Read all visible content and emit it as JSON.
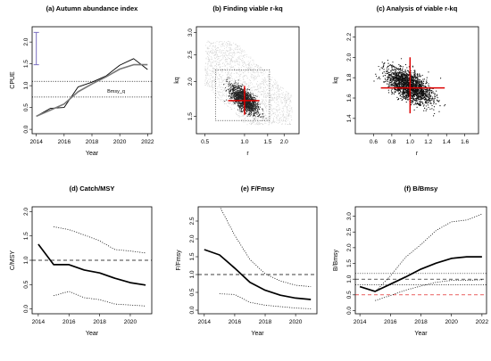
{
  "figure": {
    "panels": [
      {
        "key": "a",
        "title": "(a) Autumn abundance index",
        "xlabel": "Year",
        "ylabel": "CPUE",
        "xticks": [
          "2014",
          "2016",
          "2018",
          "2020",
          "2022"
        ],
        "yticks": [
          "0.0",
          "0.5",
          "1.0",
          "1.5",
          "2.0"
        ]
      },
      {
        "key": "b",
        "title": "(b) Finding viable r-kq",
        "xlabel": "r",
        "ylabel": "kq",
        "xticks": [
          "0.5",
          "1.0",
          "1.5",
          "2.0"
        ],
        "yticks": [
          "1.5",
          "2.0",
          "2.5",
          "3.0"
        ]
      },
      {
        "key": "c",
        "title": "(c) Analysis of viable r-kq",
        "xlabel": "r",
        "ylabel": "kq",
        "xticks": [
          "0.6",
          "0.8",
          "1.0",
          "1.2",
          "1.4",
          "1.6"
        ],
        "yticks": [
          "1.4",
          "1.6",
          "1.8",
          "2.0",
          "2.2"
        ]
      },
      {
        "key": "d",
        "title": "(d) Catch/MSY",
        "xlabel": "Year",
        "ylabel": "C/MSY",
        "xticks": [
          "2014",
          "2016",
          "2018",
          "2020"
        ],
        "yticks": [
          "0.0",
          "0.5",
          "1.0",
          "1.5",
          "2.0"
        ]
      },
      {
        "key": "e",
        "title": "(e) F/Fmsy",
        "xlabel": "Year",
        "ylabel": "F/Fmsy",
        "xticks": [
          "2014",
          "2016",
          "2018",
          "2020"
        ],
        "yticks": [
          "0.0",
          "0.5",
          "1.0",
          "1.5",
          "2.0",
          "2.5"
        ]
      },
      {
        "key": "f",
        "title": "(f) B/Bmsy",
        "xlabel": "Year",
        "ylabel": "B/Bmsy",
        "xticks": [
          "2014",
          "2016",
          "2018",
          "2020",
          "2022"
        ],
        "yticks": [
          "0.0",
          "0.5",
          "1.0",
          "1.5",
          "2.0",
          "2.5",
          "3.0"
        ]
      }
    ],
    "annotations": {
      "bmsy_label": "Bmsy_q"
    }
  },
  "chart_data": [
    {
      "type": "line",
      "panel": "a",
      "xlim": [
        2013.7,
        2022.3
      ],
      "ylim": [
        -0.1,
        2.35
      ],
      "series": [
        {
          "x": [
            2014,
            2015,
            2016,
            2017,
            2018,
            2019,
            2020,
            2021,
            2022
          ],
          "y": [
            0.3,
            0.48,
            0.5,
            0.97,
            1.08,
            1.22,
            1.47,
            1.62,
            1.37
          ],
          "style": "thin",
          "color": "#000000"
        },
        {
          "x": [
            2014,
            2015,
            2016,
            2017,
            2018,
            2019,
            2020,
            2021,
            2022
          ],
          "y": [
            0.3,
            0.44,
            0.58,
            0.86,
            1.04,
            1.2,
            1.38,
            1.48,
            1.48
          ],
          "style": "thick",
          "color": "#777777"
        }
      ],
      "hlines": [
        {
          "y": 1.1,
          "style": "dotted"
        },
        {
          "y": 0.74,
          "style": "dotted"
        }
      ],
      "errorbar": {
        "x": 2014,
        "y0": 1.48,
        "y1": 2.22,
        "color": "#7a6fc0"
      }
    },
    {
      "type": "scatter",
      "panel": "b",
      "log_x": true,
      "log_y": true,
      "xlim": [
        0.43,
        2.6
      ],
      "ylim": [
        1.3,
        3.15
      ],
      "background_cloud": {
        "r": [
          0.45,
          2.4
        ],
        "kq": [
          1.35,
          2.9
        ]
      },
      "viable_box": {
        "r": [
          0.6,
          1.55
        ],
        "kq": [
          1.45,
          2.2
        ]
      },
      "viable_cloud_center": {
        "r": 1.0,
        "kq": 1.72
      },
      "crosshair": {
        "r": 1.0,
        "kq": 1.71,
        "r_range": [
          0.75,
          1.3
        ],
        "kq_range": [
          1.52,
          1.93
        ],
        "color": "#dd0000"
      }
    },
    {
      "type": "scatter",
      "panel": "c",
      "xlim": [
        0.4,
        1.75
      ],
      "ylim": [
        1.25,
        2.3
      ],
      "cloud_center": {
        "r": 1.0,
        "kq": 1.72
      },
      "crosshair": {
        "r": 1.0,
        "kq": 1.7,
        "r_range": [
          0.68,
          1.38
        ],
        "kq_range": [
          1.45,
          2.0
        ],
        "color": "#dd0000"
      }
    },
    {
      "type": "line",
      "panel": "d",
      "xlim": [
        2013.6,
        2021.4
      ],
      "ylim": [
        -0.1,
        2.1
      ],
      "x": [
        2014,
        2015,
        2016,
        2017,
        2018,
        2019,
        2020,
        2021
      ],
      "series": [
        {
          "y": [
            1.33,
            0.91,
            0.91,
            0.8,
            0.74,
            0.63,
            0.54,
            0.49
          ],
          "style": "median"
        },
        {
          "x": [
            2015,
            2016,
            2017,
            2018,
            2019,
            2020,
            2021
          ],
          "y": [
            1.69,
            1.63,
            1.52,
            1.4,
            1.22,
            1.19,
            1.15
          ],
          "style": "upper"
        },
        {
          "x": [
            2015,
            2016,
            2017,
            2018,
            2019,
            2020,
            2021
          ],
          "y": [
            0.27,
            0.36,
            0.23,
            0.19,
            0.1,
            0.08,
            0.06
          ],
          "style": "lower"
        }
      ],
      "hlines": [
        {
          "y": 1.0,
          "style": "dashed"
        }
      ]
    },
    {
      "type": "line",
      "panel": "e",
      "xlim": [
        2013.6,
        2021.4
      ],
      "ylim": [
        -0.1,
        2.9
      ],
      "x": [
        2014,
        2015,
        2016,
        2017,
        2018,
        2019,
        2020,
        2021
      ],
      "series": [
        {
          "y": [
            1.7,
            1.55,
            1.18,
            0.78,
            0.56,
            0.42,
            0.34,
            0.3
          ],
          "style": "median"
        },
        {
          "x": [
            2015,
            2016,
            2017,
            2018,
            2019,
            2020,
            2021
          ],
          "y": [
            2.92,
            2.1,
            1.42,
            1.02,
            0.82,
            0.7,
            0.66
          ],
          "style": "upper"
        },
        {
          "x": [
            2015,
            2016,
            2017,
            2018,
            2019,
            2020,
            2021
          ],
          "y": [
            0.46,
            0.44,
            0.22,
            0.14,
            0.1,
            0.06,
            0.04
          ],
          "style": "lower"
        }
      ],
      "hlines": [
        {
          "y": 1.0,
          "style": "dashed"
        }
      ]
    },
    {
      "type": "line",
      "panel": "f",
      "xlim": [
        2013.7,
        2022.3
      ],
      "ylim": [
        -0.1,
        3.3
      ],
      "x": [
        2014,
        2015,
        2016,
        2017,
        2018,
        2019,
        2020,
        2021,
        2022
      ],
      "series": [
        {
          "y": [
            0.76,
            0.61,
            0.84,
            1.07,
            1.32,
            1.51,
            1.66,
            1.71,
            1.71
          ],
          "style": "median"
        },
        {
          "x": [
            2015,
            2016,
            2017,
            2018,
            2019,
            2020,
            2021,
            2022
          ],
          "y": [
            0.6,
            1.1,
            1.7,
            2.1,
            2.55,
            2.82,
            2.88,
            3.07
          ],
          "style": "upper"
        },
        {
          "x": [
            2015,
            2016,
            2017,
            2018,
            2019,
            2020,
            2021,
            2022
          ],
          "y": [
            0.32,
            0.48,
            0.65,
            0.78,
            0.9,
            0.96,
            0.96,
            0.98
          ],
          "style": "lower"
        }
      ],
      "hlines": [
        {
          "y": 1.0,
          "style": "dashed",
          "color": "#000000"
        },
        {
          "y": 0.5,
          "style": "dashed",
          "color": "#dd0000"
        },
        {
          "y": 1.18,
          "style": "dotted",
          "color": "#000000"
        },
        {
          "y": 0.82,
          "style": "dotted",
          "color": "#000000"
        }
      ]
    }
  ]
}
